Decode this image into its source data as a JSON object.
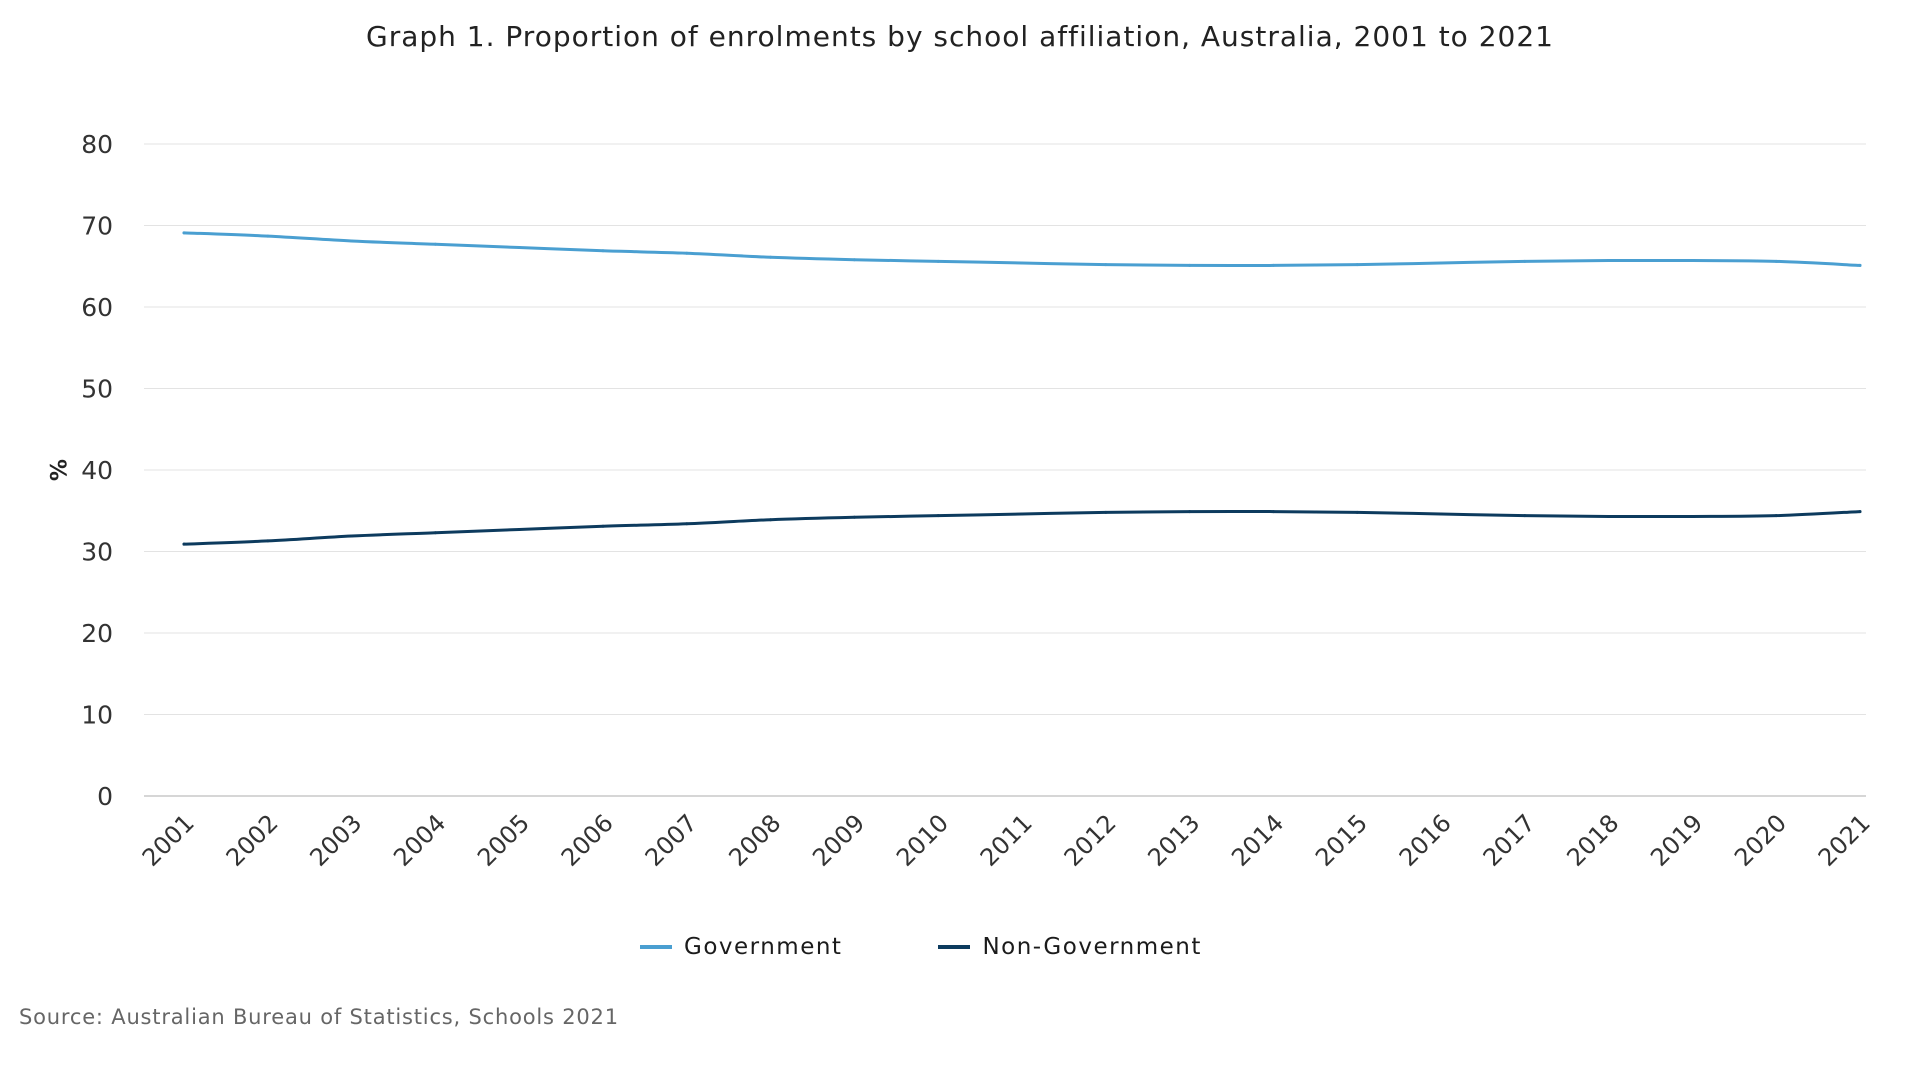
{
  "chart_data": {
    "type": "line",
    "title": "Graph 1. Proportion of enrolments by school affiliation, Australia, 2001 to 2021",
    "ylabel": "%",
    "xlabel": "",
    "ylim": [
      0,
      80
    ],
    "yticks": [
      0,
      10,
      20,
      30,
      40,
      50,
      60,
      70,
      80
    ],
    "grid": true,
    "legend_position": "bottom",
    "categories": [
      "2001",
      "2002",
      "2003",
      "2004",
      "2005",
      "2006",
      "2007",
      "2008",
      "2009",
      "2010",
      "2011",
      "2012",
      "2013",
      "2014",
      "2015",
      "2016",
      "2017",
      "2018",
      "2019",
      "2020",
      "2021"
    ],
    "series": [
      {
        "name": "Government",
        "color": "#4a9fd1",
        "values": [
          69.1,
          68.7,
          68.1,
          67.7,
          67.3,
          66.9,
          66.6,
          66.1,
          65.8,
          65.6,
          65.4,
          65.2,
          65.1,
          65.1,
          65.2,
          65.4,
          65.6,
          65.7,
          65.7,
          65.6,
          65.1
        ]
      },
      {
        "name": "Non-Government",
        "color": "#0d3b5e",
        "values": [
          30.9,
          31.3,
          31.9,
          32.3,
          32.7,
          33.1,
          33.4,
          33.9,
          34.2,
          34.4,
          34.6,
          34.8,
          34.9,
          34.9,
          34.8,
          34.6,
          34.4,
          34.3,
          34.3,
          34.4,
          34.9
        ]
      }
    ]
  },
  "source": "Source: Australian Bureau of Statistics, Schools 2021"
}
